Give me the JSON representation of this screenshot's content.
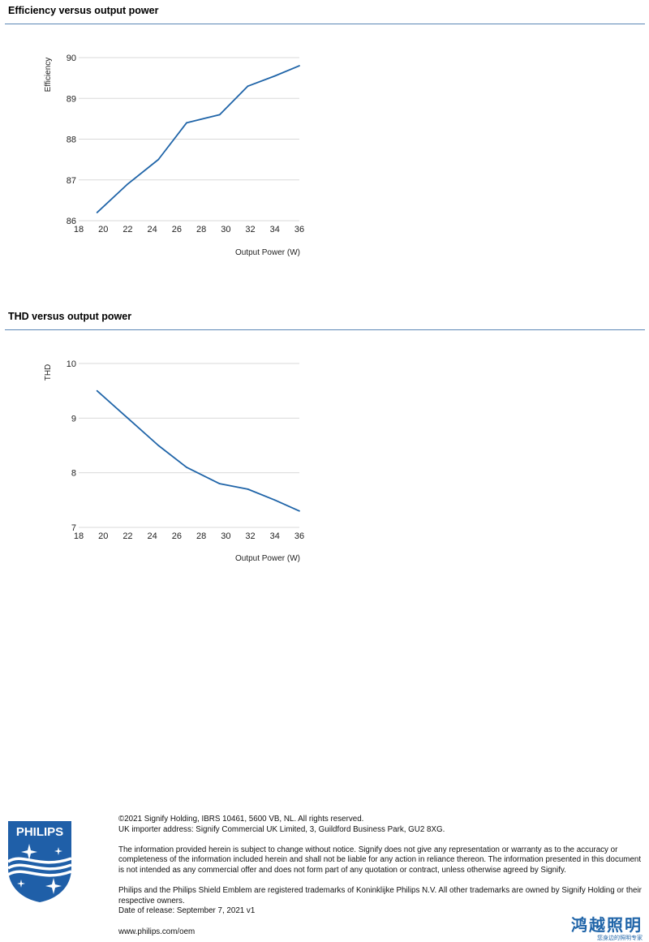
{
  "sections": {
    "efficiency_title": "Efficiency versus output power",
    "thd_title": "THD versus output power"
  },
  "chart_data": [
    {
      "type": "line",
      "title": "",
      "xlabel": "Output Power (W)",
      "ylabel": "Efficiency",
      "xlim": [
        18,
        36
      ],
      "ylim": [
        86,
        90
      ],
      "xticks": [
        18,
        20,
        22,
        24,
        26,
        28,
        30,
        32,
        34,
        36
      ],
      "yticks": [
        86,
        87,
        88,
        89,
        90
      ],
      "grid": true,
      "color": "#1f64a8",
      "series": [
        {
          "x": [
            19.5,
            22.0,
            24.5,
            26.8,
            29.5,
            31.8,
            34.0,
            36.0
          ],
          "y": [
            86.2,
            86.9,
            87.5,
            88.4,
            88.6,
            89.3,
            89.55,
            89.8
          ]
        }
      ]
    },
    {
      "type": "line",
      "title": "",
      "xlabel": "Output Power (W)",
      "ylabel": "THD",
      "xlim": [
        18,
        36
      ],
      "ylim": [
        7,
        10
      ],
      "xticks": [
        18,
        20,
        22,
        24,
        26,
        28,
        30,
        32,
        34,
        36
      ],
      "yticks": [
        7,
        8,
        9,
        10
      ],
      "grid": true,
      "color": "#1f64a8",
      "series": [
        {
          "x": [
            19.5,
            22.0,
            24.5,
            26.8,
            29.5,
            31.8,
            34.0,
            36.0
          ],
          "y": [
            9.5,
            9.0,
            8.5,
            8.1,
            7.8,
            7.7,
            7.5,
            7.3
          ]
        }
      ]
    }
  ],
  "logo": {
    "text": "PHILIPS",
    "color": "#1f5fa8"
  },
  "footer": {
    "line1": "©2021 Signify Holding, IBRS 10461, 5600 VB, NL. All rights reserved.",
    "line2": "UK importer address: Signify Commercial UK Limited, 3, Guildford Business Park, GU2 8XG.",
    "para2": "The information provided herein is subject to change without notice. Signify does not give any representation or warranty as to the accuracy or completeness of the information included herein and shall not be liable for any action in reliance thereon. The information presented in this document is not intended as any commercial offer and does not form part of any quotation or contract, unless otherwise agreed by Signify.",
    "para3": "Philips and the Philips Shield Emblem are registered trademarks of Koninklijke Philips N.V. All other trademarks are owned by Signify Holding or their respective owners.",
    "release": "Date of release: September 7, 2021 v1",
    "url": "www.philips.com/oem"
  },
  "brand_cn": {
    "name": "鸿越照明",
    "tagline": "您身边的照明专家"
  }
}
